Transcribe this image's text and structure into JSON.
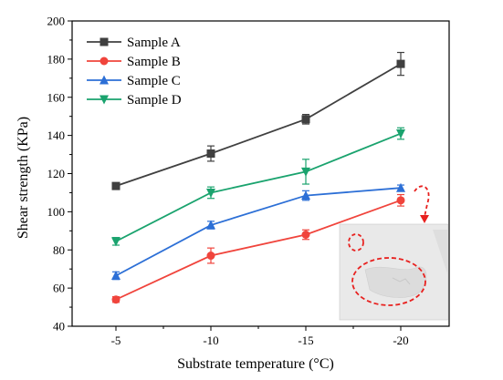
{
  "chart_data": {
    "type": "line",
    "xlabel": "Substrate temperature (°C)",
    "ylabel": "Shear strength (KPa)",
    "x": [
      -5,
      -10,
      -15,
      -20
    ],
    "x_tick_labels": [
      "-5",
      "-10",
      "-15",
      "-20"
    ],
    "y_ticks": [
      40,
      60,
      80,
      100,
      120,
      140,
      160,
      180,
      200
    ],
    "ylim": [
      40,
      200
    ],
    "legend_position": "top-left",
    "grid": false,
    "series": [
      {
        "name": "Sample A",
        "color": "#404040",
        "marker": "square",
        "values": [
          113.5,
          130.5,
          148.5,
          177.5
        ],
        "errors": [
          1.5,
          4,
          2.5,
          6
        ]
      },
      {
        "name": "Sample B",
        "color": "#f0443c",
        "marker": "circle",
        "values": [
          54,
          77,
          88,
          106
        ],
        "errors": [
          1.5,
          4,
          2.5,
          3
        ]
      },
      {
        "name": "Sample C",
        "color": "#2c6fd6",
        "marker": "triangle-up",
        "values": [
          66.5,
          93,
          108.5,
          112.5
        ],
        "errors": [
          2,
          2,
          2.5,
          1.5
        ]
      },
      {
        "name": "Sample D",
        "color": "#1aa36e",
        "marker": "triangle-down",
        "values": [
          84.5,
          110,
          121,
          141
        ],
        "errors": [
          2,
          3,
          6.5,
          3
        ]
      }
    ]
  },
  "inset": {
    "description": "photo of ice sample with red dashed circles",
    "annotation_color": "#e8211f"
  }
}
